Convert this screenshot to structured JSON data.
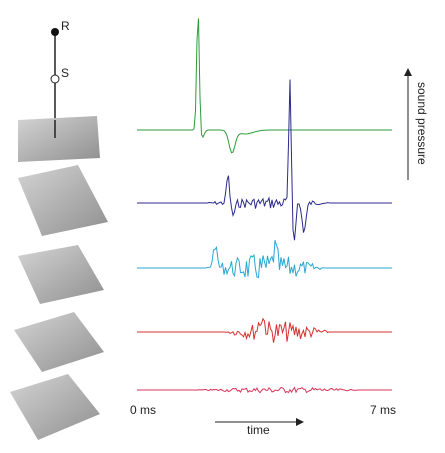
{
  "labels": {
    "receiver": "R",
    "source": "S",
    "y_axis": "sound pressure",
    "x_start": "0 ms",
    "x_end": "7 ms",
    "x_axis": "time"
  }
}
